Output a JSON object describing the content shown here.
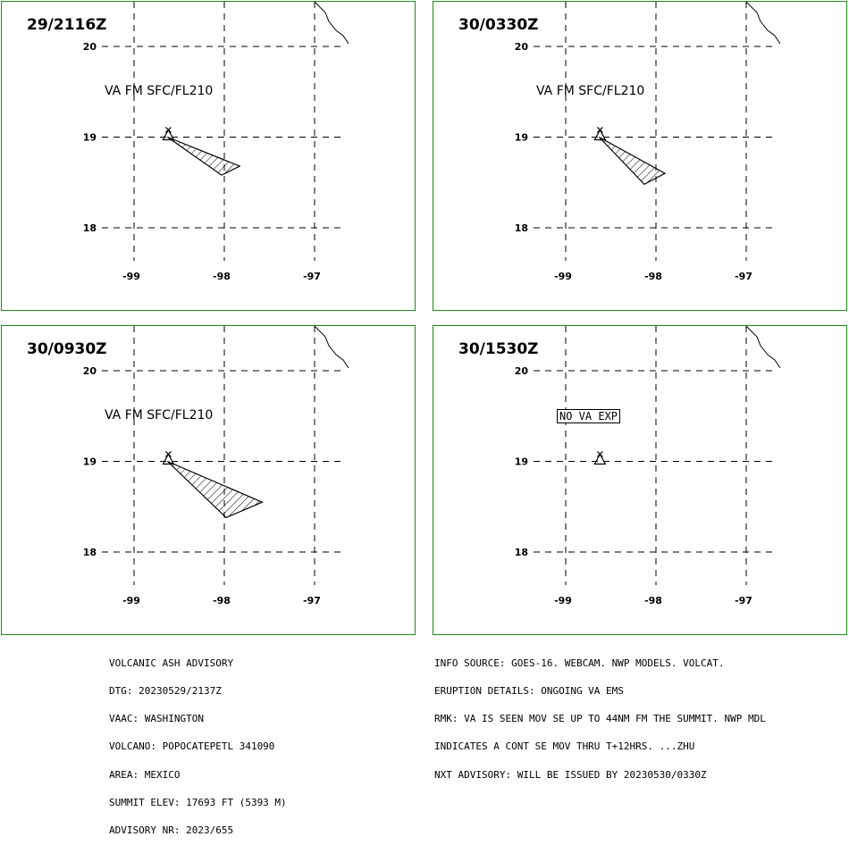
{
  "panels": [
    {
      "time": "29/2116Z",
      "label": "VA FM SFC/FL210",
      "no_va": false,
      "plume": [
        [
          -98.63,
          19.0
        ],
        [
          -98.03,
          18.58
        ],
        [
          -97.83,
          18.68
        ]
      ]
    },
    {
      "time": "30/0330Z",
      "label": "VA FM SFC/FL210",
      "no_va": false,
      "plume": [
        [
          -98.63,
          19.0
        ],
        [
          -98.13,
          18.48
        ],
        [
          -97.9,
          18.6
        ]
      ]
    },
    {
      "time": "30/0930Z",
      "label": "VA FM SFC/FL210",
      "no_va": false,
      "plume": [
        [
          -98.63,
          19.0
        ],
        [
          -97.98,
          18.38
        ],
        [
          -97.58,
          18.55
        ]
      ]
    },
    {
      "time": "30/1530Z",
      "label": "NO VA EXP",
      "no_va": true,
      "plume": []
    }
  ],
  "axes": {
    "lat_labels": [
      "20",
      "19",
      "18"
    ],
    "lon_labels": [
      "-99",
      "-98",
      "-97"
    ],
    "lat_values": [
      20,
      19,
      18
    ],
    "lon_values": [
      -99,
      -98,
      -97
    ]
  },
  "volcano": {
    "lon": -98.62,
    "lat": 19.02
  },
  "advisory_left": [
    "VOLCANIC ASH ADVISORY",
    "DTG: 20230529/2137Z",
    "VAAC: WASHINGTON",
    "VOLCANO: POPOCATEPETL 341090",
    "AREA: MEXICO",
    "SUMMIT ELEV: 17693 FT (5393 M)",
    "ADVISORY NR: 2023/655"
  ],
  "advisory_right": [
    "INFO SOURCE: GOES-16. WEBCAM. NWP MODELS. VOLCAT.",
    "ERUPTION DETAILS: ONGOING VA EMS",
    "RMK: VA IS SEEN MOV SE UP TO 44NM FM THE SUMMIT. NWP MDL",
    "INDICATES A CONT SE MOV THRU T+12HRS. ...ZHU",
    "NXT ADVISORY: WILL BE ISSUED BY 20230530/0330Z"
  ],
  "colors": {
    "border": "#1a8c1a",
    "lines": "#000000"
  }
}
